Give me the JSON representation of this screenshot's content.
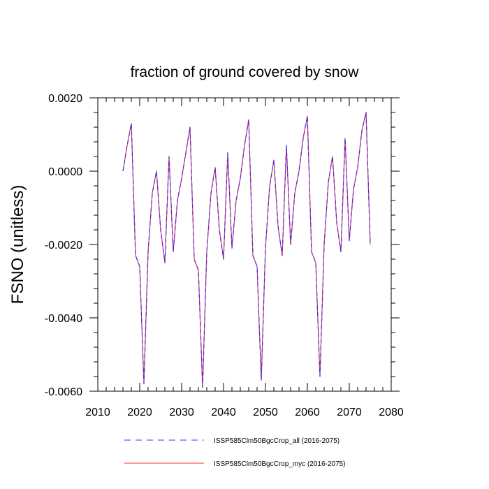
{
  "chart_data": {
    "type": "line",
    "title": "fraction of ground covered by snow",
    "xlabel": "",
    "ylabel": "FSNO  (unitless)",
    "xlim": [
      2010,
      2080
    ],
    "ylim": [
      -0.006,
      0.002
    ],
    "x_ticks": [
      2010,
      2020,
      2030,
      2040,
      2050,
      2060,
      2070,
      2080
    ],
    "x_tick_labels": [
      "2010",
      "2020",
      "2030",
      "2040",
      "2050",
      "2060",
      "2070",
      "2080"
    ],
    "y_ticks": [
      0.002,
      0.0,
      -0.002,
      -0.004,
      -0.006
    ],
    "y_tick_labels": [
      "0.0020",
      "0.0000",
      "-0.0020",
      "-0.0040",
      "-0.0060"
    ],
    "grid": false,
    "legend_position": "bottom",
    "x": [
      2016,
      2017,
      2018,
      2019,
      2020,
      2021,
      2022,
      2023,
      2024,
      2025,
      2026,
      2027,
      2028,
      2029,
      2030,
      2031,
      2032,
      2033,
      2034,
      2035,
      2036,
      2037,
      2038,
      2039,
      2040,
      2041,
      2042,
      2043,
      2044,
      2045,
      2046,
      2047,
      2048,
      2049,
      2050,
      2051,
      2052,
      2053,
      2054,
      2055,
      2056,
      2057,
      2058,
      2059,
      2060,
      2061,
      2062,
      2063,
      2064,
      2065,
      2066,
      2067,
      2068,
      2069,
      2070,
      2071,
      2072,
      2073,
      2074,
      2075
    ],
    "series": [
      {
        "name": "ISSP585Clm50BgcCrop_all (2016-2075)",
        "color": "#3333ff",
        "style": "dashed",
        "values": [
          0.0,
          0.0007,
          0.0013,
          -0.0023,
          -0.0026,
          -0.0058,
          -0.0022,
          -0.0006,
          0.0,
          -0.0016,
          -0.0025,
          0.0004,
          -0.0022,
          -0.0008,
          -0.0002,
          0.0005,
          0.0012,
          -0.0024,
          -0.0027,
          -0.0059,
          -0.0022,
          -0.0006,
          0.0001,
          -0.0016,
          -0.0024,
          0.0005,
          -0.0021,
          -0.0008,
          -0.0002,
          0.0007,
          0.0014,
          -0.0023,
          -0.0026,
          -0.0057,
          -0.0021,
          -0.0004,
          0.0003,
          -0.0015,
          -0.0023,
          0.0007,
          -0.002,
          -0.0006,
          0.0,
          0.0009,
          0.0015,
          -0.0022,
          -0.0025,
          -0.0056,
          -0.002,
          -0.0003,
          0.0004,
          -0.0014,
          -0.0022,
          0.0009,
          -0.0019,
          -0.0005,
          0.0001,
          0.0011,
          0.0016,
          -0.002
        ]
      },
      {
        "name": "ISSP585Clm50BgcCrop_myc (2016-2075)",
        "color": "#ff3333",
        "style": "solid",
        "values": [
          0.0,
          0.0007,
          0.0013,
          -0.0023,
          -0.0026,
          -0.0058,
          -0.0022,
          -0.0006,
          0.0,
          -0.0016,
          -0.0025,
          0.0004,
          -0.0022,
          -0.0008,
          -0.0002,
          0.0005,
          0.0012,
          -0.0024,
          -0.0027,
          -0.0059,
          -0.0022,
          -0.0006,
          0.0001,
          -0.0016,
          -0.0024,
          0.0005,
          -0.0021,
          -0.0008,
          -0.0002,
          0.0007,
          0.0014,
          -0.0023,
          -0.0026,
          -0.0057,
          -0.0021,
          -0.0004,
          0.0003,
          -0.0015,
          -0.0023,
          0.0007,
          -0.002,
          -0.0006,
          0.0,
          0.0009,
          0.0015,
          -0.0022,
          -0.0025,
          -0.0056,
          -0.002,
          -0.0003,
          0.0004,
          -0.0014,
          -0.0022,
          0.0009,
          -0.0019,
          -0.0005,
          0.0001,
          0.0011,
          0.0016,
          -0.002
        ]
      }
    ]
  }
}
